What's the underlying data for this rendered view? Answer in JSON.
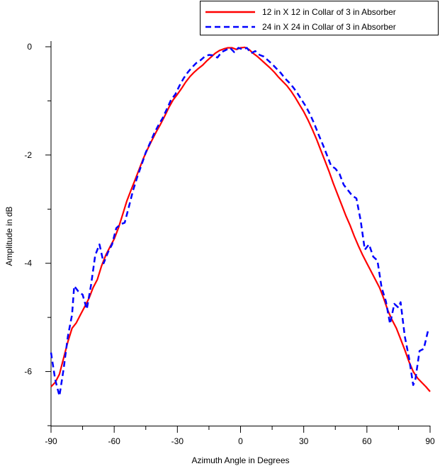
{
  "chart_data": {
    "type": "line",
    "xlabel": "Azimuth Angle in Degrees",
    "ylabel": "Amplitude in dB",
    "xlim": [
      -90,
      90
    ],
    "ylim": [
      -7,
      0
    ],
    "xticks": [
      -90,
      -60,
      -30,
      0,
      30,
      60,
      90
    ],
    "xtick_labels": [
      "-90",
      "-60",
      "-30",
      "0",
      "30",
      "60",
      "90"
    ],
    "yticks": [
      0,
      -2,
      -4,
      -6
    ],
    "ytick_labels": [
      "0",
      "-2",
      "-4",
      "-6"
    ],
    "grid": false,
    "legend_position": "top-right",
    "series": [
      {
        "name": "12 in X 12 in Collar of 3 in Absorber",
        "color": "#ff0000",
        "dash": "solid",
        "points": [
          [
            -90,
            -6.28
          ],
          [
            -88,
            -6.2
          ],
          [
            -86,
            -6.05
          ],
          [
            -84,
            -5.75
          ],
          [
            -82,
            -5.45
          ],
          [
            -80,
            -5.2
          ],
          [
            -78,
            -5.1
          ],
          [
            -76,
            -4.95
          ],
          [
            -74,
            -4.8
          ],
          [
            -72,
            -4.65
          ],
          [
            -70,
            -4.45
          ],
          [
            -68,
            -4.3
          ],
          [
            -66,
            -4.05
          ],
          [
            -64,
            -3.85
          ],
          [
            -62,
            -3.7
          ],
          [
            -60,
            -3.55
          ],
          [
            -58,
            -3.35
          ],
          [
            -56,
            -3.1
          ],
          [
            -54,
            -2.85
          ],
          [
            -52,
            -2.65
          ],
          [
            -50,
            -2.45
          ],
          [
            -48,
            -2.25
          ],
          [
            -46,
            -2.05
          ],
          [
            -44,
            -1.88
          ],
          [
            -42,
            -1.72
          ],
          [
            -40,
            -1.57
          ],
          [
            -38,
            -1.43
          ],
          [
            -36,
            -1.28
          ],
          [
            -34,
            -1.12
          ],
          [
            -32,
            -0.98
          ],
          [
            -30,
            -0.88
          ],
          [
            -28,
            -0.77
          ],
          [
            -26,
            -0.65
          ],
          [
            -24,
            -0.55
          ],
          [
            -22,
            -0.47
          ],
          [
            -20,
            -0.4
          ],
          [
            -18,
            -0.34
          ],
          [
            -16,
            -0.26
          ],
          [
            -14,
            -0.19
          ],
          [
            -12,
            -0.12
          ],
          [
            -10,
            -0.07
          ],
          [
            -8,
            -0.04
          ],
          [
            -6,
            -0.02
          ],
          [
            -4,
            -0.02
          ],
          [
            -2,
            -0.05
          ],
          [
            0,
            -0.02
          ],
          [
            2,
            -0.01
          ],
          [
            4,
            -0.05
          ],
          [
            6,
            -0.12
          ],
          [
            8,
            -0.18
          ],
          [
            10,
            -0.25
          ],
          [
            12,
            -0.32
          ],
          [
            14,
            -0.39
          ],
          [
            16,
            -0.47
          ],
          [
            18,
            -0.56
          ],
          [
            20,
            -0.64
          ],
          [
            22,
            -0.72
          ],
          [
            24,
            -0.82
          ],
          [
            26,
            -0.94
          ],
          [
            28,
            -1.07
          ],
          [
            30,
            -1.2
          ],
          [
            32,
            -1.35
          ],
          [
            34,
            -1.52
          ],
          [
            36,
            -1.7
          ],
          [
            38,
            -1.9
          ],
          [
            40,
            -2.1
          ],
          [
            42,
            -2.3
          ],
          [
            44,
            -2.52
          ],
          [
            46,
            -2.72
          ],
          [
            48,
            -2.92
          ],
          [
            50,
            -3.12
          ],
          [
            52,
            -3.3
          ],
          [
            54,
            -3.5
          ],
          [
            56,
            -3.68
          ],
          [
            58,
            -3.85
          ],
          [
            60,
            -4.0
          ],
          [
            62,
            -4.15
          ],
          [
            64,
            -4.3
          ],
          [
            66,
            -4.45
          ],
          [
            68,
            -4.65
          ],
          [
            70,
            -4.88
          ],
          [
            72,
            -5.05
          ],
          [
            74,
            -5.2
          ],
          [
            76,
            -5.4
          ],
          [
            78,
            -5.6
          ],
          [
            80,
            -5.82
          ],
          [
            82,
            -6.0
          ],
          [
            84,
            -6.12
          ],
          [
            86,
            -6.2
          ],
          [
            88,
            -6.28
          ],
          [
            90,
            -6.37
          ]
        ]
      },
      {
        "name": "24 in X 24 in Collar of 3 in Absorber",
        "color": "#0000ff",
        "dash": "dashed",
        "points": [
          [
            -90,
            -5.65
          ],
          [
            -88,
            -6.15
          ],
          [
            -86,
            -6.45
          ],
          [
            -84,
            -5.95
          ],
          [
            -82,
            -5.35
          ],
          [
            -80,
            -4.95
          ],
          [
            -79,
            -4.42
          ],
          [
            -77,
            -4.52
          ],
          [
            -75,
            -4.58
          ],
          [
            -73,
            -4.85
          ],
          [
            -71,
            -4.4
          ],
          [
            -69,
            -3.85
          ],
          [
            -67,
            -3.65
          ],
          [
            -65,
            -4.0
          ],
          [
            -63,
            -3.8
          ],
          [
            -61,
            -3.65
          ],
          [
            -59,
            -3.35
          ],
          [
            -57,
            -3.28
          ],
          [
            -55,
            -3.25
          ],
          [
            -53,
            -2.95
          ],
          [
            -51,
            -2.65
          ],
          [
            -49,
            -2.4
          ],
          [
            -47,
            -2.18
          ],
          [
            -45,
            -1.95
          ],
          [
            -43,
            -1.78
          ],
          [
            -41,
            -1.6
          ],
          [
            -39,
            -1.45
          ],
          [
            -37,
            -1.32
          ],
          [
            -35,
            -1.15
          ],
          [
            -33,
            -0.98
          ],
          [
            -31,
            -0.88
          ],
          [
            -29,
            -0.72
          ],
          [
            -27,
            -0.58
          ],
          [
            -25,
            -0.47
          ],
          [
            -23,
            -0.38
          ],
          [
            -21,
            -0.3
          ],
          [
            -19,
            -0.25
          ],
          [
            -17,
            -0.18
          ],
          [
            -15,
            -0.15
          ],
          [
            -13,
            -0.16
          ],
          [
            -11,
            -0.2
          ],
          [
            -9,
            -0.1
          ],
          [
            -7,
            -0.06
          ],
          [
            -5,
            -0.02
          ],
          [
            -3,
            -0.1
          ],
          [
            -1,
            -0.02
          ],
          [
            1,
            -0.05
          ],
          [
            3,
            -0.02
          ],
          [
            5,
            -0.12
          ],
          [
            7,
            -0.08
          ],
          [
            9,
            -0.15
          ],
          [
            11,
            -0.18
          ],
          [
            13,
            -0.25
          ],
          [
            15,
            -0.32
          ],
          [
            17,
            -0.4
          ],
          [
            19,
            -0.48
          ],
          [
            21,
            -0.58
          ],
          [
            23,
            -0.66
          ],
          [
            25,
            -0.75
          ],
          [
            27,
            -0.86
          ],
          [
            29,
            -0.98
          ],
          [
            31,
            -1.1
          ],
          [
            33,
            -1.25
          ],
          [
            35,
            -1.42
          ],
          [
            37,
            -1.62
          ],
          [
            39,
            -1.8
          ],
          [
            41,
            -2.0
          ],
          [
            43,
            -2.2
          ],
          [
            45,
            -2.25
          ],
          [
            47,
            -2.35
          ],
          [
            49,
            -2.55
          ],
          [
            51,
            -2.65
          ],
          [
            53,
            -2.75
          ],
          [
            55,
            -2.8
          ],
          [
            57,
            -3.2
          ],
          [
            59,
            -3.75
          ],
          [
            61,
            -3.65
          ],
          [
            63,
            -3.88
          ],
          [
            65,
            -3.95
          ],
          [
            67,
            -4.45
          ],
          [
            69,
            -4.7
          ],
          [
            71,
            -5.12
          ],
          [
            73,
            -4.75
          ],
          [
            75,
            -4.82
          ],
          [
            76,
            -4.72
          ],
          [
            78,
            -5.35
          ],
          [
            80,
            -5.75
          ],
          [
            82,
            -6.25
          ],
          [
            83,
            -6.15
          ],
          [
            85,
            -5.62
          ],
          [
            87,
            -5.58
          ],
          [
            89,
            -5.25
          ],
          [
            90,
            -5.28
          ]
        ]
      }
    ]
  }
}
